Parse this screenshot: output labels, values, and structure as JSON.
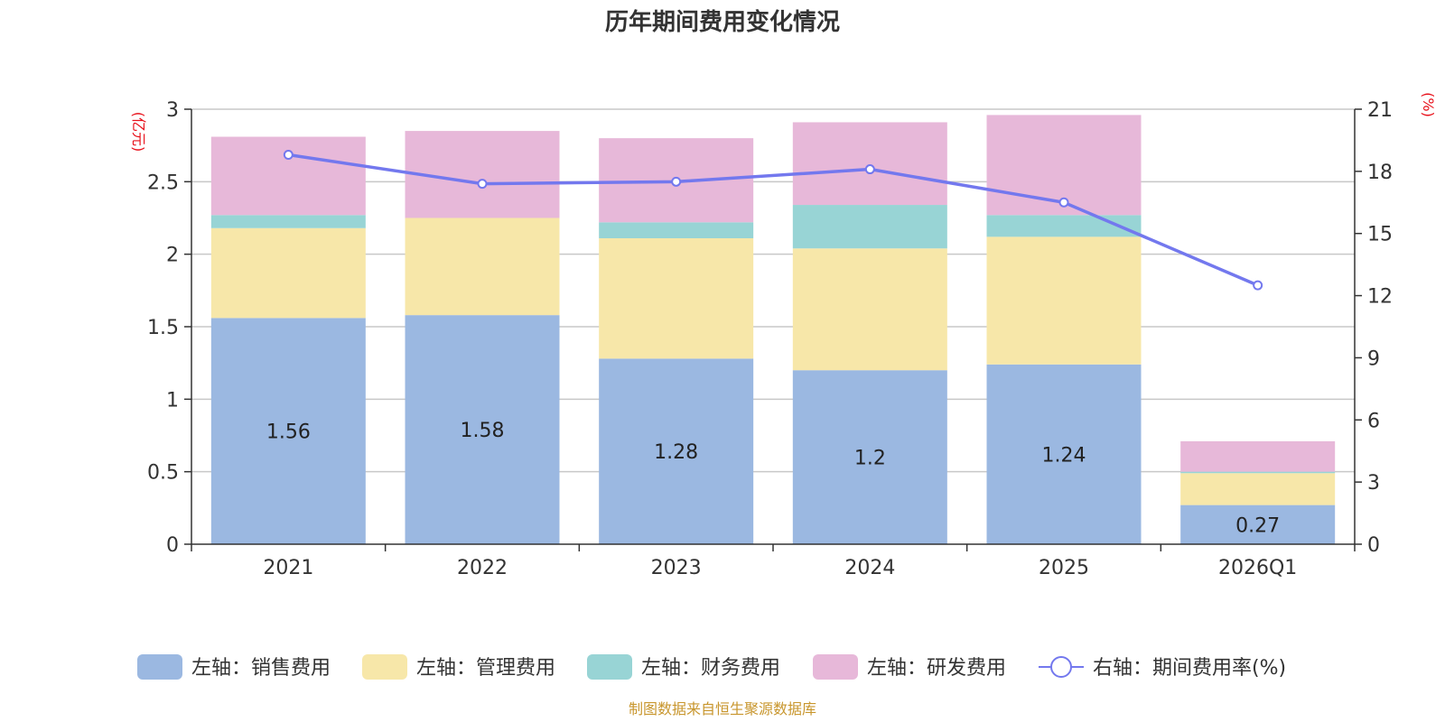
{
  "chart_data": {
    "type": "bar",
    "stacked": true,
    "title": "历年期间费用变化情况",
    "categories": [
      "2021",
      "2022",
      "2023",
      "2024",
      "2025",
      "2026Q1"
    ],
    "left_axis": {
      "label": "(亿元)",
      "ylim": [
        0,
        3
      ],
      "ticks": [
        "0",
        "0.5",
        "1",
        "1.5",
        "2",
        "2.5",
        "3"
      ],
      "tick_values": [
        0,
        0.5,
        1,
        1.5,
        2,
        2.5,
        3
      ]
    },
    "right_axis": {
      "label": "(%)",
      "ylim": [
        0,
        21
      ],
      "ticks": [
        "0",
        "3",
        "6",
        "9",
        "12",
        "15",
        "18",
        "21"
      ],
      "tick_values": [
        0,
        3,
        6,
        9,
        12,
        15,
        18,
        21
      ]
    },
    "series": [
      {
        "name": "左轴：销售费用",
        "axis": "left",
        "color": "#9bb8e1",
        "values": [
          1.56,
          1.58,
          1.28,
          1.2,
          1.24,
          0.27
        ],
        "labels": [
          "1.56",
          "1.58",
          "1.28",
          "1.2",
          "1.24",
          "0.27"
        ]
      },
      {
        "name": "左轴：管理费用",
        "axis": "left",
        "color": "#f7e7a9",
        "values": [
          0.62,
          0.67,
          0.83,
          0.84,
          0.88,
          0.22
        ]
      },
      {
        "name": "左轴：财务费用",
        "axis": "left",
        "color": "#98d4d5",
        "values": [
          0.09,
          0.0,
          0.11,
          0.3,
          0.15,
          0.01
        ]
      },
      {
        "name": "左轴：研发费用",
        "axis": "left",
        "color": "#e7b8d9",
        "values": [
          0.54,
          0.6,
          0.58,
          0.57,
          0.69,
          0.21
        ]
      },
      {
        "name": "右轴：期间费用率(%)",
        "axis": "right",
        "type": "line",
        "color": "#7378ee",
        "values": [
          18.8,
          17.4,
          17.5,
          18.1,
          16.5,
          12.5
        ]
      }
    ],
    "source": "制图数据来自恒生聚源数据库"
  }
}
